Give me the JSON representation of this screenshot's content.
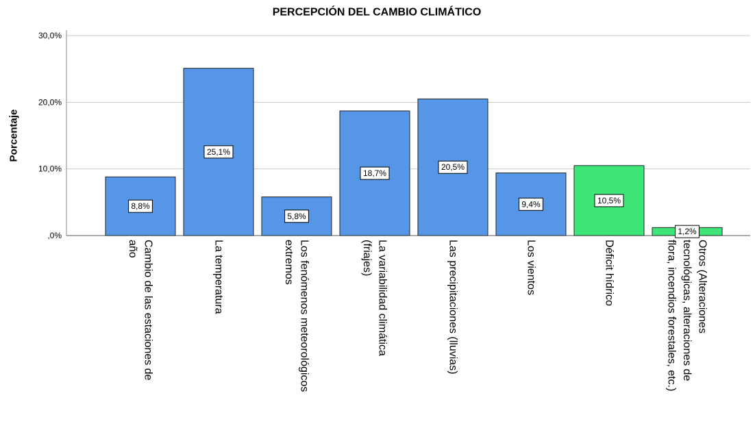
{
  "chart_data": {
    "type": "bar",
    "title": "PERCEPCIÓN DEL CAMBIO CLIMÁTICO",
    "y_label": "Porcentaje",
    "categories": [
      [
        "Cambio de las estaciones de",
        "año"
      ],
      [
        "La temperatura"
      ],
      [
        "Los fenómenos meteorológicos",
        "extremos"
      ],
      [
        "La variabilidad climática",
        "(friajes)"
      ],
      [
        "Las precipitaciones (lluvias)"
      ],
      [
        "Los vientos"
      ],
      [
        "Déficit hídrico"
      ],
      [
        "Otros (Alteraciones",
        "tecnológicas, alteraciones de",
        "flora, incendios forestales, etc.)"
      ]
    ],
    "values": [
      8.8,
      25.1,
      5.8,
      18.7,
      20.5,
      9.4,
      10.5,
      1.2
    ],
    "value_labels": [
      "8,8%",
      "25,1%",
      "5,8%",
      "18,7%",
      "20,5%",
      "9,4%",
      "10,5%",
      "1,2%"
    ],
    "colors": [
      "#5596e6",
      "#5596e6",
      "#5596e6",
      "#5596e6",
      "#5596e6",
      "#5596e6",
      "#3ee67a",
      "#3ee67a"
    ],
    "ylim": [
      0,
      30
    ],
    "yticks": [
      {
        "value": 0,
        "label": ",0%"
      },
      {
        "value": 10,
        "label": "10,0%"
      },
      {
        "value": 20,
        "label": "20,0%"
      },
      {
        "value": 30,
        "label": "30,0%"
      }
    ],
    "grid": true
  }
}
